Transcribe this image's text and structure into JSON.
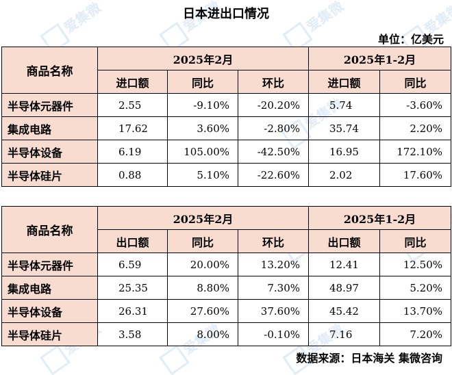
{
  "title": "日本进出口情况",
  "unit": "单位：亿美元",
  "watermark": {
    "text": "爱集微",
    "sub": "ijiwei.com"
  },
  "tables": [
    {
      "corner": "商品名称",
      "group1": "2025年2月",
      "group2": "2025年1-2月",
      "cols": [
        "进口额",
        "同比",
        "环比",
        "进口额",
        "同比"
      ],
      "rows": [
        {
          "name": "半导体元器件",
          "v": [
            "2.55",
            "-9.10%",
            "-20.20%",
            "5.74",
            "-3.60%"
          ]
        },
        {
          "name": "集成电路",
          "v": [
            "17.62",
            "3.60%",
            "-2.80%",
            "35.74",
            "2.20%"
          ]
        },
        {
          "name": "半导体设备",
          "v": [
            "6.19",
            "105.00%",
            "-42.50%",
            "16.95",
            "172.10%"
          ]
        },
        {
          "name": "半导体硅片",
          "v": [
            "0.88",
            "5.10%",
            "-22.60%",
            "2.02",
            "17.60%"
          ]
        }
      ]
    },
    {
      "corner": "商品名称",
      "group1": "2025年2月",
      "group2": "2025年1-2月",
      "cols": [
        "出口额",
        "同比",
        "环比",
        "出口额",
        "同比"
      ],
      "rows": [
        {
          "name": "半导体元器件",
          "v": [
            "6.59",
            "20.00%",
            "13.20%",
            "12.41",
            "12.50%"
          ]
        },
        {
          "name": "集成电路",
          "v": [
            "25.35",
            "8.80%",
            "7.30%",
            "48.97",
            "5.20%"
          ]
        },
        {
          "name": "半导体设备",
          "v": [
            "26.31",
            "27.60%",
            "37.60%",
            "45.42",
            "13.70%"
          ]
        },
        {
          "name": "半导体硅片",
          "v": [
            "3.58",
            "8.00%",
            "-0.10%",
            "7.16",
            "7.20%"
          ]
        }
      ]
    }
  ],
  "source": "数据来源：日本海关 集微咨询"
}
